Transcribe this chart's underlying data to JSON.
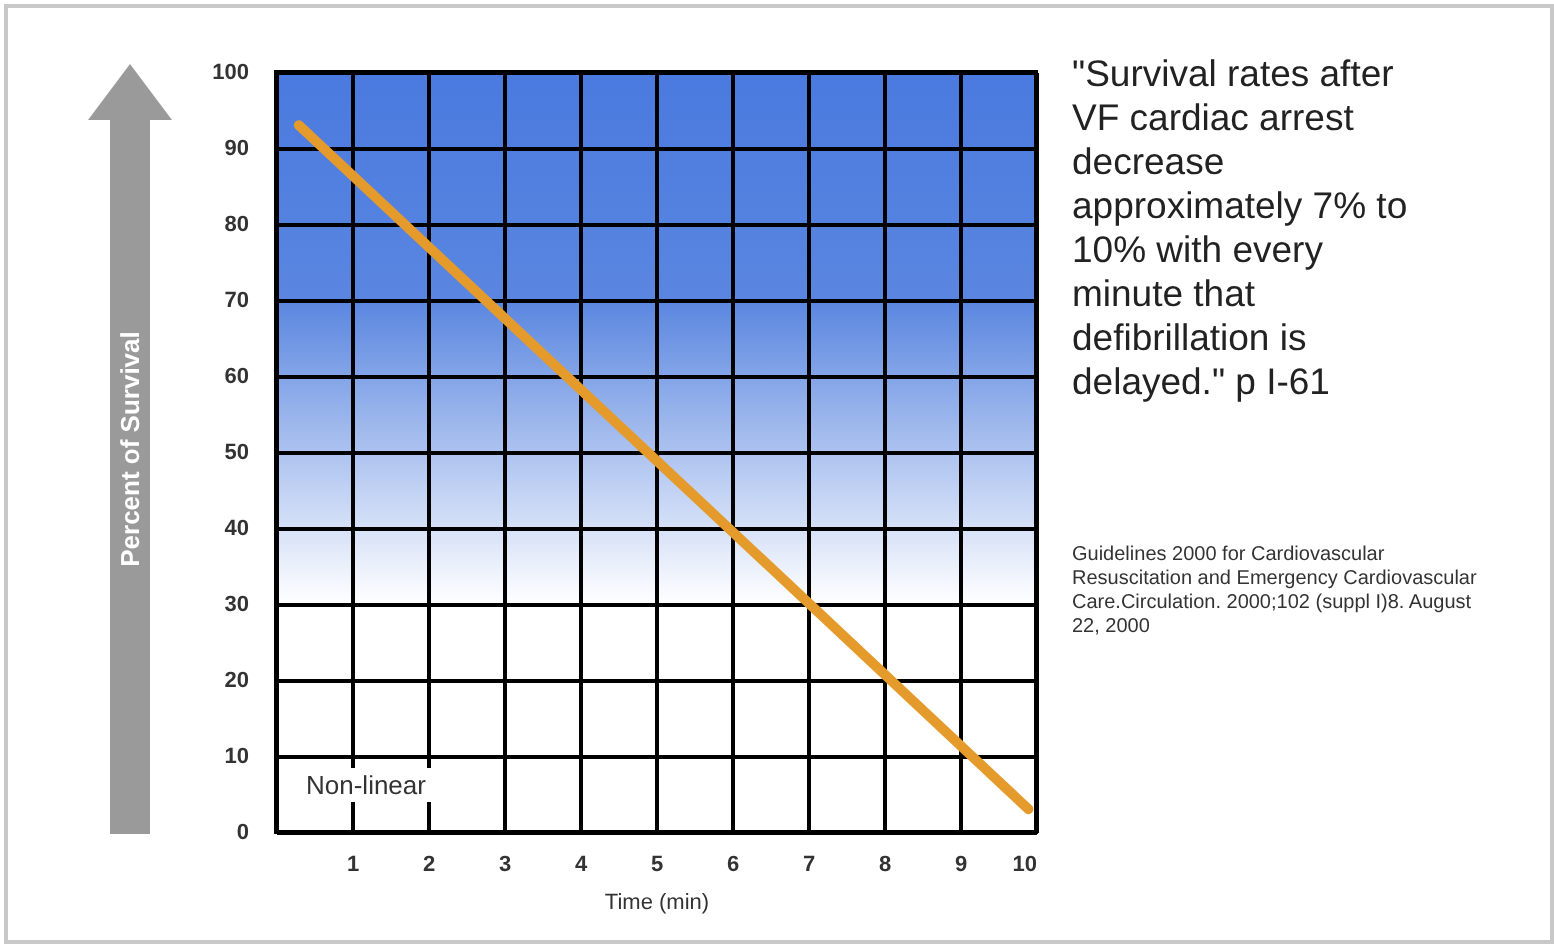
{
  "chart_data": {
    "type": "line",
    "xlabel": "Time (min)",
    "ylabel": "Percent of Survival",
    "series": [
      {
        "color": "#e49b2c",
        "x": [
          0.3,
          9.9
        ],
        "values": [
          93,
          3
        ]
      }
    ],
    "xlim": [
      0,
      10
    ],
    "xticks": [
      1,
      2,
      3,
      4,
      5,
      6,
      7,
      8,
      9,
      10
    ],
    "ylim": [
      0,
      100
    ],
    "yticks": [
      0,
      10,
      20,
      30,
      40,
      50,
      60,
      70,
      80,
      90,
      100
    ],
    "grid": true,
    "marker": "none",
    "line_style": "solid",
    "annotations": [
      "\"Survival rates after VF cardiac arrest decrease approximately 7% to 10% with every minute that defibrillation is delayed.\" p I-61",
      "Guidelines 2000 for Cardiovascular Resuscitation and Emergency Cardiovascular Care.Circulation. 2000;102 (suppl I)8. August 22, 2000",
      "Non-linear"
    ]
  }
}
